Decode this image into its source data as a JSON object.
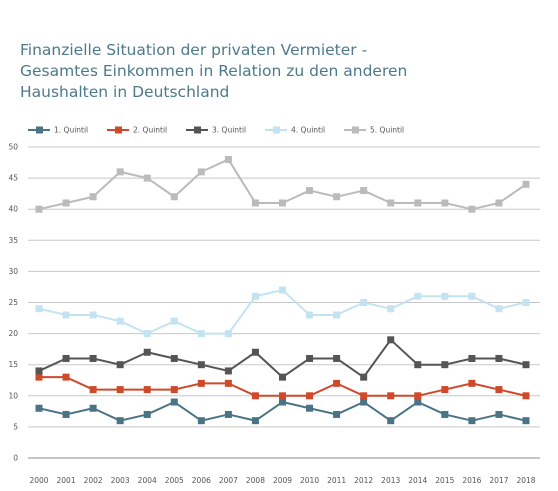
{
  "chart_data": {
    "type": "line",
    "title_lines": [
      "Finanzielle Situation der privaten Vermieter -",
      "Gesamtes Einkommen in Relation zu den anderen",
      "Haushalten in Deutschland"
    ],
    "x": [
      "2000",
      "2001",
      "2002",
      "2003",
      "2004",
      "2005",
      "2006",
      "2007",
      "2008",
      "2009",
      "2010",
      "2011",
      "2012",
      "2013",
      "2014",
      "2015",
      "2016",
      "2017",
      "2018"
    ],
    "ylim": [
      0,
      50
    ],
    "yticks": [
      "0",
      "5",
      "10",
      "15",
      "20",
      "25",
      "30",
      "35",
      "40",
      "45",
      "50"
    ],
    "grid": true,
    "legend_position": "top",
    "series": [
      {
        "name": "1. Quintil",
        "color": "#4a7485",
        "values": [
          8,
          7,
          8,
          6,
          7,
          9,
          6,
          7,
          6,
          9,
          8,
          7,
          9,
          6,
          9,
          7,
          6,
          7,
          6
        ]
      },
      {
        "name": "2. Quintil",
        "color": "#cf4a2a",
        "values": [
          13,
          13,
          11,
          11,
          11,
          11,
          12,
          12,
          10,
          10,
          10,
          12,
          10,
          10,
          10,
          11,
          12,
          11,
          10
        ]
      },
      {
        "name": "3. Quintil",
        "color": "#555555",
        "values": [
          14,
          16,
          16,
          15,
          17,
          16,
          15,
          14,
          17,
          13,
          16,
          16,
          13,
          19,
          15,
          15,
          16,
          16,
          15
        ]
      },
      {
        "name": "4. Quintil",
        "color": "#c3e3f2",
        "values": [
          24,
          23,
          23,
          22,
          20,
          22,
          20,
          20,
          26,
          27,
          23,
          23,
          25,
          24,
          26,
          26,
          26,
          24,
          25
        ]
      },
      {
        "name": "5. Quintil",
        "color": "#bbbbbb",
        "values": [
          40,
          41,
          42,
          46,
          45,
          42,
          46,
          48,
          41,
          41,
          43,
          42,
          43,
          41,
          41,
          41,
          40,
          41,
          44
        ]
      }
    ]
  }
}
